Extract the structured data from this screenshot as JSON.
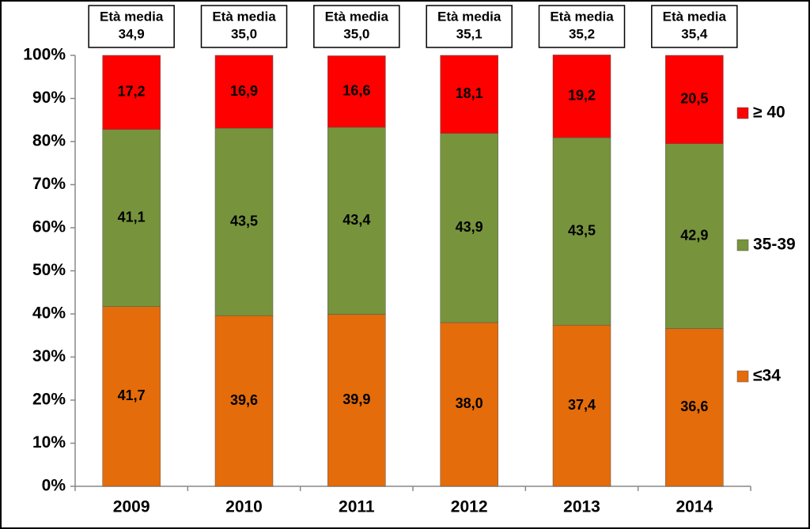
{
  "chart_data": {
    "type": "stacked_bar",
    "categories": [
      "2009",
      "2010",
      "2011",
      "2012",
      "2013",
      "2014"
    ],
    "series": [
      {
        "name": "≤34",
        "color": "#e46c0a",
        "values": [
          41.7,
          39.6,
          39.9,
          38.0,
          37.4,
          36.6
        ],
        "value_labels": [
          "41,7",
          "39,6",
          "39,9",
          "38,0",
          "37,4",
          "36,6"
        ]
      },
      {
        "name": "35-39",
        "color": "#77933c",
        "values": [
          41.1,
          43.5,
          43.4,
          43.9,
          43.5,
          42.9
        ],
        "value_labels": [
          "41,1",
          "43,5",
          "43,4",
          "43,9",
          "43,5",
          "42,9"
        ]
      },
      {
        "name": "≥ 40",
        "color": "#ff0000",
        "values": [
          17.2,
          16.9,
          16.6,
          18.1,
          19.2,
          20.5
        ],
        "value_labels": [
          "17,2",
          "16,9",
          "16,6",
          "18,1",
          "19,2",
          "20,5"
        ]
      }
    ],
    "annotations": [
      {
        "title": "Età media",
        "text": "34,9"
      },
      {
        "title": "Età media",
        "text": "35,0"
      },
      {
        "title": "Età media",
        "text": "35,0"
      },
      {
        "title": "Età media",
        "text": "35,1"
      },
      {
        "title": "Età media",
        "text": "35,2"
      },
      {
        "title": "Età media",
        "text": "35,4"
      }
    ],
    "ylim": [
      0,
      100
    ],
    "yticks": [
      {
        "value": 0,
        "label": "0%"
      },
      {
        "value": 10,
        "label": "10%"
      },
      {
        "value": 20,
        "label": "20%"
      },
      {
        "value": 30,
        "label": "30%"
      },
      {
        "value": 40,
        "label": "40%"
      },
      {
        "value": 50,
        "label": "50%"
      },
      {
        "value": 60,
        "label": "60%"
      },
      {
        "value": 70,
        "label": "70%"
      },
      {
        "value": 80,
        "label": "80%"
      },
      {
        "value": 90,
        "label": "90%"
      },
      {
        "value": 100,
        "label": "100%"
      }
    ],
    "legend": "right"
  }
}
